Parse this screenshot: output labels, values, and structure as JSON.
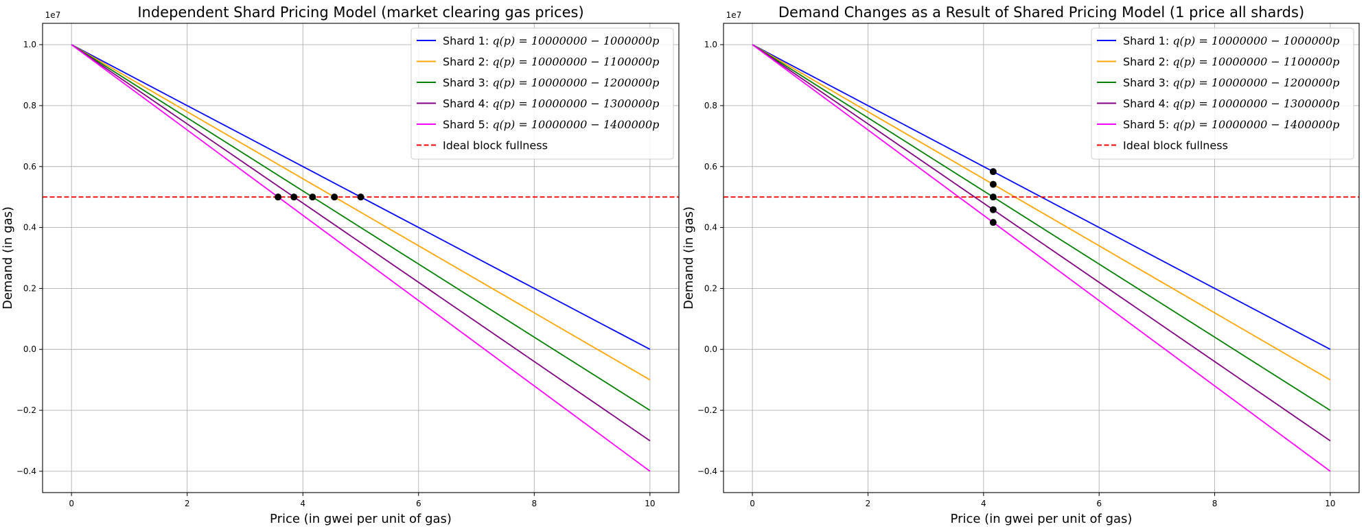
{
  "chart_data": [
    {
      "type": "line",
      "title": "Independent Shard Pricing Model (market clearing gas prices)",
      "xlabel": "Price (in gwei per unit of gas)",
      "ylabel": "Demand (in gas)",
      "y_offset_label": "1e7",
      "xlim": [
        -0.5,
        10.5
      ],
      "ylim": [
        -4700000,
        10700000
      ],
      "x_ticks": [
        0,
        2,
        4,
        6,
        8,
        10
      ],
      "y_ticks": [
        -4000000,
        -2000000,
        0,
        2000000,
        4000000,
        6000000,
        8000000,
        10000000
      ],
      "x_tick_labels": [
        "0",
        "2",
        "4",
        "6",
        "8",
        "10"
      ],
      "y_tick_labels": [
        "−0.4",
        "−0.2",
        "0.0",
        "0.2",
        "0.4",
        "0.6",
        "0.8",
        "1.0"
      ],
      "grid": true,
      "legend_position": "upper right",
      "series": [
        {
          "name": "Shard 1",
          "formula_prefix": "q(p) = ",
          "formula_body": "10000000 − 1000000p",
          "color": "#0000ff",
          "x": [
            0,
            10
          ],
          "y": [
            10000000,
            0
          ]
        },
        {
          "name": "Shard 2",
          "formula_prefix": "q(p) = ",
          "formula_body": "10000000 − 1100000p",
          "color": "#ffa500",
          "x": [
            0,
            10
          ],
          "y": [
            10000000,
            -1000000
          ]
        },
        {
          "name": "Shard 3",
          "formula_prefix": "q(p) = ",
          "formula_body": "10000000 − 1200000p",
          "color": "#008000",
          "x": [
            0,
            10
          ],
          "y": [
            10000000,
            -2000000
          ]
        },
        {
          "name": "Shard 4",
          "formula_prefix": "q(p) = ",
          "formula_body": "10000000 − 1300000p",
          "color": "#800080",
          "x": [
            0,
            10
          ],
          "y": [
            10000000,
            -3000000
          ]
        },
        {
          "name": "Shard 5",
          "formula_prefix": "q(p) = ",
          "formula_body": "10000000 − 1400000p",
          "color": "#ff00ff",
          "x": [
            0,
            10
          ],
          "y": [
            10000000,
            -4000000
          ]
        }
      ],
      "reference_line": {
        "name": "Ideal block fullness",
        "y": 5000000,
        "color": "#ff0000",
        "style": "dashed"
      },
      "points": {
        "color": "#000000",
        "x": [
          5.0,
          4.545,
          4.167,
          3.846,
          3.571
        ],
        "y": [
          5000000,
          5000000,
          5000000,
          5000000,
          5000000
        ]
      }
    },
    {
      "type": "line",
      "title": "Demand Changes as a Result of Shared Pricing Model (1 price all shards)",
      "xlabel": "Price (in gwei per unit of gas)",
      "ylabel": "Demand (in gas)",
      "y_offset_label": "1e7",
      "xlim": [
        -0.5,
        10.5
      ],
      "ylim": [
        -4700000,
        10700000
      ],
      "x_ticks": [
        0,
        2,
        4,
        6,
        8,
        10
      ],
      "y_ticks": [
        -4000000,
        -2000000,
        0,
        2000000,
        4000000,
        6000000,
        8000000,
        10000000
      ],
      "x_tick_labels": [
        "0",
        "2",
        "4",
        "6",
        "8",
        "10"
      ],
      "y_tick_labels": [
        "−0.4",
        "−0.2",
        "0.0",
        "0.2",
        "0.4",
        "0.6",
        "0.8",
        "1.0"
      ],
      "grid": true,
      "legend_position": "upper right",
      "series": [
        {
          "name": "Shard 1",
          "formula_prefix": "q(p) = ",
          "formula_body": "10000000 − 1000000p",
          "color": "#0000ff",
          "x": [
            0,
            10
          ],
          "y": [
            10000000,
            0
          ]
        },
        {
          "name": "Shard 2",
          "formula_prefix": "q(p) = ",
          "formula_body": "10000000 − 1100000p",
          "color": "#ffa500",
          "x": [
            0,
            10
          ],
          "y": [
            10000000,
            -1000000
          ]
        },
        {
          "name": "Shard 3",
          "formula_prefix": "q(p) = ",
          "formula_body": "10000000 − 1200000p",
          "color": "#008000",
          "x": [
            0,
            10
          ],
          "y": [
            10000000,
            -2000000
          ]
        },
        {
          "name": "Shard 4",
          "formula_prefix": "q(p) = ",
          "formula_body": "10000000 − 1300000p",
          "color": "#800080",
          "x": [
            0,
            10
          ],
          "y": [
            10000000,
            -3000000
          ]
        },
        {
          "name": "Shard 5",
          "formula_prefix": "q(p) = ",
          "formula_body": "10000000 − 1400000p",
          "color": "#ff00ff",
          "x": [
            0,
            10
          ],
          "y": [
            10000000,
            -4000000
          ]
        }
      ],
      "reference_line": {
        "name": "Ideal block fullness",
        "y": 5000000,
        "color": "#ff0000",
        "style": "dashed"
      },
      "points": {
        "color": "#000000",
        "x": [
          4.167,
          4.167,
          4.167,
          4.167,
          4.167
        ],
        "y": [
          5833333,
          5416667,
          5000000,
          4583333,
          4166667
        ]
      }
    }
  ]
}
